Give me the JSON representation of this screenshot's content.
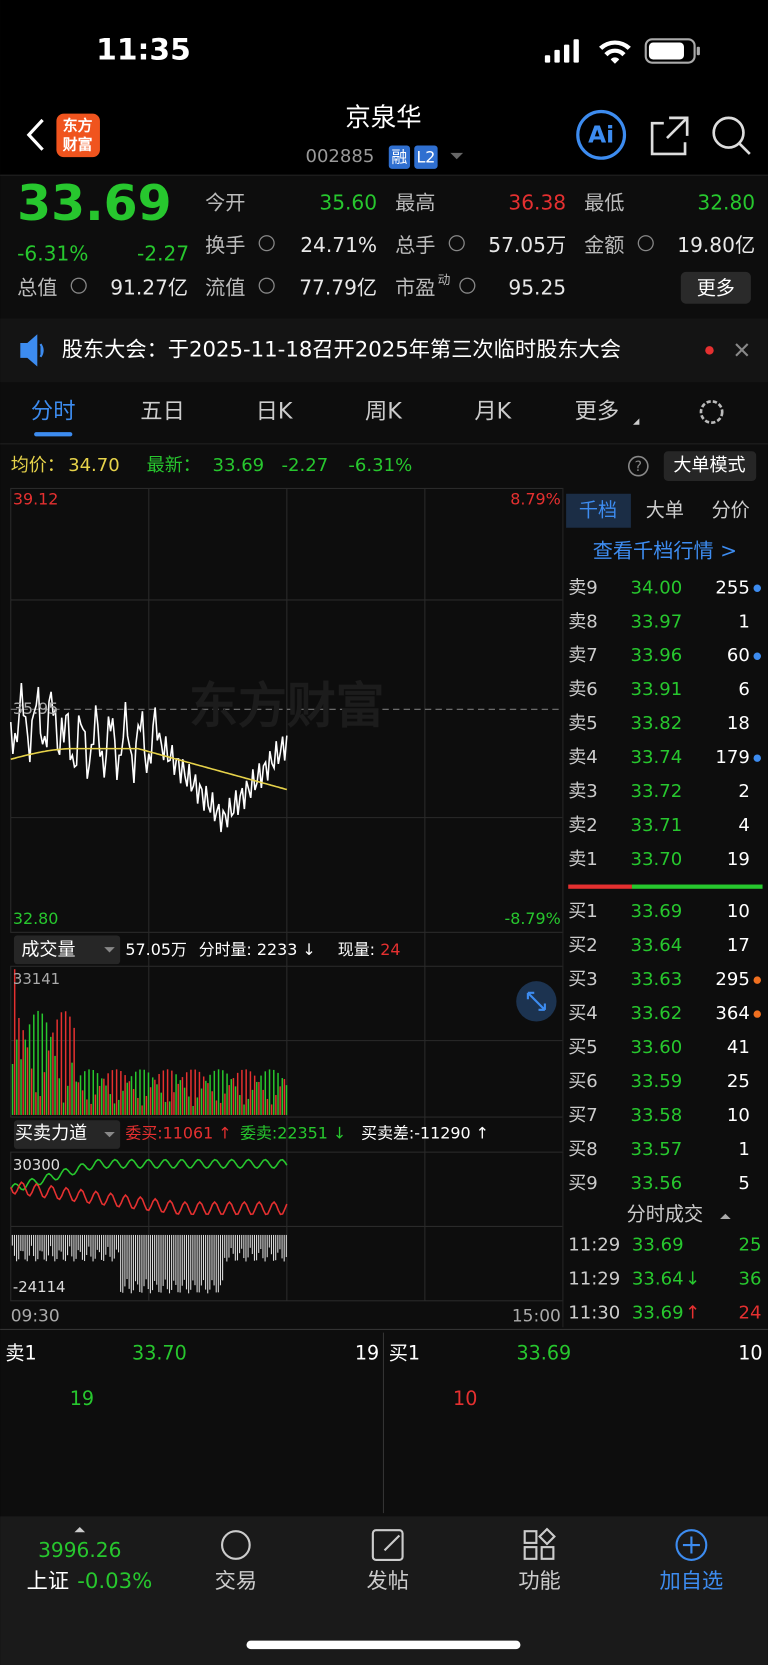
{
  "status": {
    "time": "11:35"
  },
  "header": {
    "logo": [
      "东方",
      "财富"
    ],
    "title": "京泉华",
    "code": "002885",
    "badges": [
      "融",
      "L2"
    ],
    "ai": "Ai"
  },
  "quote": {
    "price": "33.69",
    "change_pct": "-6.31%",
    "change": "-2.27",
    "color": "#27c72e",
    "fields": [
      {
        "label": "今开",
        "value": "35.60",
        "color": "#27c72e"
      },
      {
        "label": "最高",
        "value": "36.38",
        "color": "#e53030"
      },
      {
        "label": "最低",
        "value": "32.80",
        "color": "#27c72e"
      },
      {
        "label": "换手",
        "value": "24.71%",
        "color": "#e8e8e8"
      },
      {
        "label": "总手",
        "value": "57.05万",
        "color": "#e8e8e8"
      },
      {
        "label": "金额",
        "value": "19.80亿",
        "color": "#e8e8e8"
      },
      {
        "label": "总值",
        "value": "91.27亿",
        "color": "#e8e8e8"
      },
      {
        "label": "流值",
        "value": "77.79亿",
        "color": "#e8e8e8"
      },
      {
        "label": "市盈",
        "sup": "动",
        "value": "95.25",
        "color": "#e8e8e8"
      }
    ],
    "more": "更多"
  },
  "notice": "股东大会：于2025-11-18召开2025年第三次临时股东大会",
  "tabs": [
    "分时",
    "五日",
    "日K",
    "周K",
    "月K",
    "更多"
  ],
  "info": {
    "avg_label": "均价：",
    "avg": "34.70",
    "latest_label": "最新：",
    "latest": "33.69",
    "change": "-2.27",
    "pct": "-6.31%",
    "mode": "大单模式"
  },
  "price_chart": {
    "top": "39.12",
    "top_pct": "8.79%",
    "ref": "35.95",
    "bottom": "32.80",
    "bottom_pct": "-8.79%",
    "watermark": "东方财富"
  },
  "volume": {
    "label": "成交量",
    "total": "57.05万",
    "minute": "分时量: 2233 ↓",
    "now_label": "现量:",
    "now": "24",
    "max": "33141"
  },
  "force": {
    "label": "买卖力道",
    "bid": "委买:11061 ↑",
    "ask": "委卖:22351 ↓",
    "diff": "买卖差:-11290 ↑",
    "max": "30300",
    "min": "-24114"
  },
  "time_axis": [
    "09:30",
    "15:00"
  ],
  "panel": {
    "tabs": [
      "千档",
      "大单",
      "分价"
    ],
    "link": "查看千档行情 >",
    "sells": [
      {
        "label": "卖9",
        "price": "34.00",
        "volume": "255",
        "dot": "#3d8cf0"
      },
      {
        "label": "卖8",
        "price": "33.97",
        "volume": "1"
      },
      {
        "label": "卖7",
        "price": "33.96",
        "volume": "60",
        "dot": "#3d8cf0"
      },
      {
        "label": "卖6",
        "price": "33.91",
        "volume": "6"
      },
      {
        "label": "卖5",
        "price": "33.82",
        "volume": "18"
      },
      {
        "label": "卖4",
        "price": "33.74",
        "volume": "179",
        "dot": "#3d8cf0"
      },
      {
        "label": "卖3",
        "price": "33.72",
        "volume": "2"
      },
      {
        "label": "卖2",
        "price": "33.71",
        "volume": "4"
      },
      {
        "label": "卖1",
        "price": "33.70",
        "volume": "19"
      }
    ],
    "buys": [
      {
        "label": "买1",
        "price": "33.69",
        "volume": "10"
      },
      {
        "label": "买2",
        "price": "33.64",
        "volume": "17"
      },
      {
        "label": "买3",
        "price": "33.63",
        "volume": "295",
        "dot": "#f07020"
      },
      {
        "label": "买4",
        "price": "33.62",
        "volume": "364",
        "dot": "#f07020"
      },
      {
        "label": "买5",
        "price": "33.60",
        "volume": "41"
      },
      {
        "label": "买6",
        "price": "33.59",
        "volume": "25"
      },
      {
        "label": "买7",
        "price": "33.58",
        "volume": "10"
      },
      {
        "label": "买8",
        "price": "33.57",
        "volume": "1"
      },
      {
        "label": "买9",
        "price": "33.56",
        "volume": "5"
      }
    ],
    "trades_title": "分时成交",
    "trades": [
      {
        "time": "11:29",
        "price": "33.69",
        "volume": "25",
        "color": "#27c72e"
      },
      {
        "time": "11:29",
        "price": "33.64",
        "arrow": "↓",
        "volume": "36",
        "color": "#27c72e"
      },
      {
        "time": "11:30",
        "price": "33.69",
        "arrow": "↑",
        "volume": "24",
        "color": "#e53030"
      }
    ]
  },
  "level1": {
    "sell_label": "卖1",
    "sell_price": "33.70",
    "sell_volume": "19",
    "buy_label": "买1",
    "buy_price": "33.69",
    "buy_volume": "10",
    "sell_detail": "19",
    "buy_detail": "10"
  },
  "nav": {
    "index_value": "3996.26",
    "index_name": "上证",
    "index_change": "-0.03%",
    "items": [
      "交易",
      "发帖",
      "功能",
      "加自选"
    ]
  }
}
